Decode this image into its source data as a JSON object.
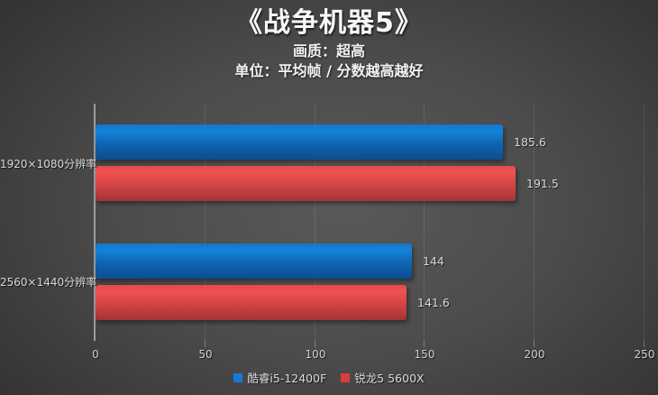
{
  "header": {
    "title": "《战争机器5》",
    "subtitle_quality": "画质：超高",
    "subtitle_unit": "单位：平均帧 / 分数越高越好"
  },
  "colors": {
    "background_center": "#585858",
    "background_edge": "#262626",
    "axis_line": "#9c9c9c",
    "text_light": "#d9d9d9"
  },
  "chart_data": {
    "type": "bar",
    "orientation": "horizontal",
    "title": "《战争机器5》",
    "subtitles": [
      "画质：超高",
      "单位：平均帧 / 分数越高越好"
    ],
    "categories": [
      "1920×1080分辨率",
      "2560×1440分辨率"
    ],
    "series": [
      {
        "name": "酷睿i5-12400F",
        "legend_color": "#147ad6",
        "gradient": [
          "#1478cd",
          "#1581d9",
          "#0e63ae",
          "#0b4e90"
        ],
        "values": [
          185.6,
          144
        ],
        "labels": [
          "185.6",
          "144"
        ]
      },
      {
        "name": "锐龙5 5600X",
        "legend_color": "#dd3c3c",
        "gradient": [
          "#e64949",
          "#ef5151",
          "#cf4343",
          "#a23434"
        ],
        "values": [
          191.5,
          141.6
        ],
        "labels": [
          "191.5",
          "141.6"
        ]
      }
    ],
    "xlim": [
      0,
      250
    ],
    "xticks": [
      0,
      50,
      100,
      150,
      200,
      250
    ],
    "grid": true,
    "legend_position": "bottom"
  }
}
